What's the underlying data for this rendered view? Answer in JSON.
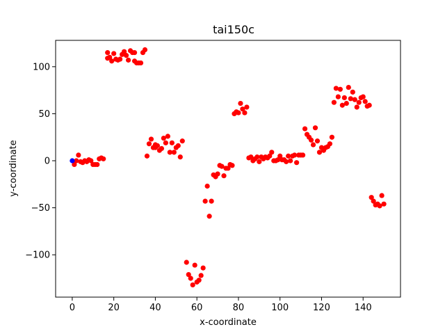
{
  "chart_data": {
    "type": "scatter",
    "title": "tai150c",
    "xlabel": "x-coordinate",
    "ylabel": "y-coordinate",
    "xlim": [
      -8,
      158
    ],
    "ylim": [
      -145,
      128
    ],
    "xticks": [
      0,
      20,
      40,
      60,
      80,
      100,
      120,
      140
    ],
    "yticks": [
      -100,
      -50,
      0,
      50,
      100
    ],
    "grid": false,
    "series": [
      {
        "color": "#0000ff",
        "points": [
          [
            0,
            0
          ]
        ]
      },
      {
        "color": "#ff0000",
        "points": [
          [
            1,
            -4
          ],
          [
            2,
            0
          ],
          [
            3,
            6
          ],
          [
            4,
            -1
          ],
          [
            5,
            -2
          ],
          [
            6,
            0
          ],
          [
            7,
            -1
          ],
          [
            8,
            1
          ],
          [
            9,
            0
          ],
          [
            10,
            -4
          ],
          [
            11,
            -4
          ],
          [
            12,
            -4
          ],
          [
            13,
            2
          ],
          [
            14,
            3
          ],
          [
            15,
            2
          ],
          [
            17,
            109
          ],
          [
            17,
            115
          ],
          [
            18,
            110
          ],
          [
            19,
            106
          ],
          [
            20,
            114
          ],
          [
            21,
            108
          ],
          [
            22,
            107
          ],
          [
            23,
            108
          ],
          [
            24,
            113
          ],
          [
            25,
            116
          ],
          [
            26,
            112
          ],
          [
            27,
            107
          ],
          [
            28,
            117
          ],
          [
            29,
            115
          ],
          [
            30,
            115
          ],
          [
            30,
            106
          ],
          [
            31,
            104
          ],
          [
            32,
            104
          ],
          [
            33,
            104
          ],
          [
            34,
            115
          ],
          [
            35,
            118
          ],
          [
            36,
            5
          ],
          [
            37,
            18
          ],
          [
            38,
            23
          ],
          [
            39,
            14
          ],
          [
            40,
            17
          ],
          [
            40,
            14
          ],
          [
            41,
            16
          ],
          [
            42,
            11
          ],
          [
            43,
            13
          ],
          [
            44,
            24
          ],
          [
            45,
            19
          ],
          [
            46,
            26
          ],
          [
            47,
            9
          ],
          [
            48,
            19
          ],
          [
            49,
            9
          ],
          [
            50,
            14
          ],
          [
            51,
            16
          ],
          [
            52,
            4
          ],
          [
            53,
            21
          ],
          [
            55,
            -108
          ],
          [
            56,
            -121
          ],
          [
            57,
            -125
          ],
          [
            58,
            -132
          ],
          [
            59,
            -111
          ],
          [
            60,
            -129
          ],
          [
            61,
            -127
          ],
          [
            62,
            -122
          ],
          [
            63,
            -114
          ],
          [
            64,
            -43
          ],
          [
            65,
            -27
          ],
          [
            66,
            -59
          ],
          [
            67,
            -43
          ],
          [
            68,
            -15
          ],
          [
            69,
            -17
          ],
          [
            70,
            -14
          ],
          [
            71,
            -5
          ],
          [
            72,
            -6
          ],
          [
            73,
            -16
          ],
          [
            74,
            -8
          ],
          [
            75,
            -8
          ],
          [
            76,
            -4
          ],
          [
            77,
            -5
          ],
          [
            78,
            50
          ],
          [
            79,
            52
          ],
          [
            80,
            51
          ],
          [
            81,
            61
          ],
          [
            82,
            55
          ],
          [
            83,
            51
          ],
          [
            84,
            57
          ],
          [
            85,
            3
          ],
          [
            86,
            4
          ],
          [
            87,
            0
          ],
          [
            88,
            2
          ],
          [
            89,
            4
          ],
          [
            90,
            -1
          ],
          [
            91,
            4
          ],
          [
            92,
            2
          ],
          [
            93,
            4
          ],
          [
            94,
            3
          ],
          [
            95,
            5
          ],
          [
            96,
            9
          ],
          [
            97,
            0
          ],
          [
            98,
            0
          ],
          [
            99,
            1
          ],
          [
            100,
            5
          ],
          [
            101,
            1
          ],
          [
            102,
            1
          ],
          [
            103,
            -1
          ],
          [
            104,
            5
          ],
          [
            105,
            0
          ],
          [
            106,
            5
          ],
          [
            107,
            6
          ],
          [
            108,
            -2
          ],
          [
            109,
            6
          ],
          [
            110,
            6
          ],
          [
            111,
            6
          ],
          [
            112,
            34
          ],
          [
            113,
            28
          ],
          [
            114,
            25
          ],
          [
            115,
            22
          ],
          [
            116,
            17
          ],
          [
            117,
            35
          ],
          [
            118,
            21
          ],
          [
            119,
            9
          ],
          [
            120,
            14
          ],
          [
            121,
            11
          ],
          [
            122,
            14
          ],
          [
            123,
            15
          ],
          [
            124,
            18
          ],
          [
            125,
            25
          ],
          [
            126,
            62
          ],
          [
            127,
            77
          ],
          [
            128,
            68
          ],
          [
            129,
            76
          ],
          [
            130,
            59
          ],
          [
            131,
            67
          ],
          [
            132,
            61
          ],
          [
            133,
            78
          ],
          [
            134,
            66
          ],
          [
            135,
            73
          ],
          [
            136,
            65
          ],
          [
            137,
            57
          ],
          [
            138,
            62
          ],
          [
            139,
            67
          ],
          [
            140,
            68
          ],
          [
            141,
            63
          ],
          [
            142,
            58
          ],
          [
            143,
            59
          ],
          [
            144,
            -39
          ],
          [
            145,
            -43
          ],
          [
            146,
            -47
          ],
          [
            147,
            -46
          ],
          [
            148,
            -48
          ],
          [
            149,
            -37
          ],
          [
            150,
            -46
          ]
        ]
      }
    ]
  }
}
